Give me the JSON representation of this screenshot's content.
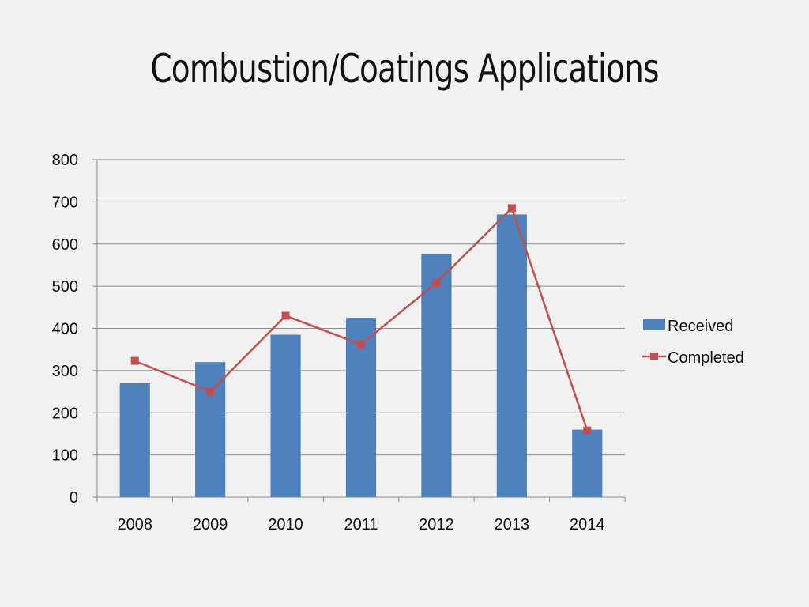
{
  "slide": {
    "title": "Combustion/Coatings Applications"
  },
  "chart_data": {
    "type": "bar",
    "title": "",
    "xlabel": "",
    "ylabel": "",
    "categories": [
      "2008",
      "2009",
      "2010",
      "2011",
      "2012",
      "2013",
      "2014"
    ],
    "ylim": [
      0,
      800
    ],
    "yticks": [
      0,
      100,
      200,
      300,
      400,
      500,
      600,
      700,
      800
    ],
    "grid": true,
    "legend_position": "right",
    "series": [
      {
        "name": "Received",
        "type": "bar",
        "color": "#4f81bd",
        "values": [
          270,
          320,
          385,
          425,
          577,
          670,
          160
        ]
      },
      {
        "name": "Completed",
        "type": "line",
        "marker": "square",
        "color": "#c0504d",
        "values": [
          323,
          250,
          430,
          362,
          508,
          685,
          158
        ]
      }
    ]
  }
}
